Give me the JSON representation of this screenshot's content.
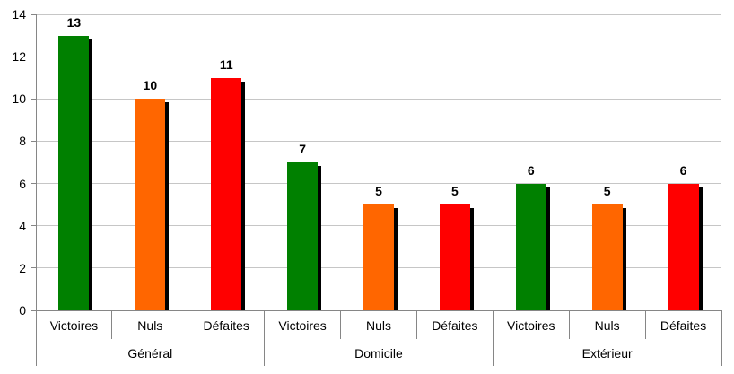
{
  "chart_data": {
    "type": "bar",
    "title": "",
    "categories": [
      "Victoires",
      "Nuls",
      "Défaites"
    ],
    "groups": [
      {
        "label": "Général",
        "values": [
          13,
          10,
          11
        ]
      },
      {
        "label": "Domicile",
        "values": [
          7,
          5,
          5
        ]
      },
      {
        "label": "Extérieur",
        "values": [
          6,
          5,
          6
        ]
      }
    ],
    "category_colors": [
      "#008000",
      "#FF6600",
      "#FF0000"
    ],
    "bar_shadow_color": "#000000",
    "data_labels": true,
    "ylim": [
      0,
      14
    ],
    "ytick_step": 2,
    "ytick_labels": [
      "0",
      "2",
      "4",
      "6",
      "8",
      "10",
      "12",
      "14"
    ],
    "grid": true,
    "legend": "none",
    "colors": {
      "background": "#FFFFFF",
      "gridline": "#C6C6C6",
      "axis": "#868686",
      "text": "#000000"
    }
  }
}
